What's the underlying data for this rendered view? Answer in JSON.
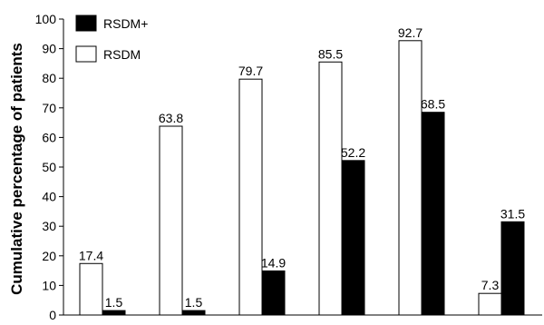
{
  "chart_data": {
    "type": "bar",
    "title": "",
    "ylabel": "Cumulative percentage of patients",
    "xlabel": "",
    "categories": [
      "",
      "",
      "",
      "",
      "",
      ""
    ],
    "ylim": [
      0,
      100
    ],
    "yticks": [
      0,
      10,
      20,
      30,
      40,
      50,
      60,
      70,
      80,
      90,
      100
    ],
    "grid": false,
    "legend": "top-left",
    "series": [
      {
        "name": "RSDM",
        "fill": "#ffffff",
        "values": [
          17.4,
          63.8,
          79.7,
          85.5,
          92.7,
          7.3
        ]
      },
      {
        "name": "RSDM+",
        "fill": "#000000",
        "values": [
          1.5,
          1.5,
          14.9,
          52.2,
          68.5,
          31.5
        ]
      }
    ]
  }
}
